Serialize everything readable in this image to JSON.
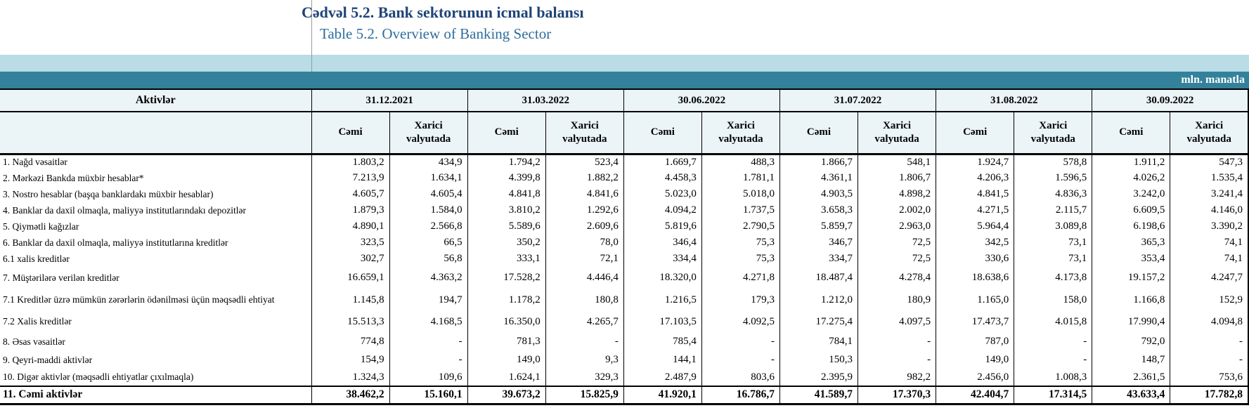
{
  "title": {
    "az": "Cədvəl 5.2. Bank sektorunun icmal balansı",
    "en": "Table 5.2. Overview of Banking Sector"
  },
  "unit_label": "mln. manatla",
  "table": {
    "row_header": "Aktivlər",
    "dates": [
      "31.12.2021",
      "31.03.2022",
      "30.06.2022",
      "31.07.2022",
      "31.08.2022",
      "30.09.2022"
    ],
    "subcolumns": [
      "Cəmi",
      "Xarici valyutada"
    ],
    "rows": [
      {
        "label": "1. Nağd vəsaitlər",
        "values": [
          "1.803,2",
          "434,9",
          "1.794,2",
          "523,4",
          "1.669,7",
          "488,3",
          "1.866,7",
          "548,1",
          "1.924,7",
          "578,8",
          "1.911,2",
          "547,3"
        ]
      },
      {
        "label": "2. Mərkəzi Bankda müxbir hesablar*",
        "values": [
          "7.213,9",
          "1.634,1",
          "4.399,8",
          "1.882,2",
          "4.458,3",
          "1.781,1",
          "4.361,1",
          "1.806,7",
          "4.206,3",
          "1.596,5",
          "4.026,2",
          "1.535,4"
        ]
      },
      {
        "label": "3. Nostro hesablar (başqa banklardakı müxbir hesablar)",
        "values": [
          "4.605,7",
          "4.605,4",
          "4.841,8",
          "4.841,6",
          "5.023,0",
          "5.018,0",
          "4.903,5",
          "4.898,2",
          "4.841,5",
          "4.836,3",
          "3.242,0",
          "3.241,4"
        ]
      },
      {
        "label": "4. Banklar da daxil olmaqla, maliyyə institutlarındakı depozitlər",
        "values": [
          "1.879,3",
          "1.584,0",
          "3.810,2",
          "1.292,6",
          "4.094,2",
          "1.737,5",
          "3.658,3",
          "2.002,0",
          "4.271,5",
          "2.115,7",
          "6.609,5",
          "4.146,0"
        ]
      },
      {
        "label": "5. Qiymətli kağızlar",
        "values": [
          "4.890,1",
          "2.566,8",
          "5.589,6",
          "2.609,6",
          "5.819,6",
          "2.790,5",
          "5.859,7",
          "2.963,0",
          "5.964,4",
          "3.089,8",
          "6.198,6",
          "3.390,2"
        ]
      },
      {
        "label": "6. Banklar da daxil olmaqla, maliyyə institutlarına kreditlər",
        "values": [
          "323,5",
          "66,5",
          "350,2",
          "78,0",
          "346,4",
          "75,3",
          "346,7",
          "72,5",
          "342,5",
          "73,1",
          "365,3",
          "74,1"
        ]
      },
      {
        "label": "6.1 xalis kreditlər",
        "values": [
          "302,7",
          "56,8",
          "333,1",
          "72,1",
          "334,4",
          "75,3",
          "334,7",
          "72,5",
          "330,6",
          "73,1",
          "353,4",
          "74,1"
        ]
      },
      {
        "label": "7. Müştərilərə verilən kreditlər",
        "values": [
          "16.659,1",
          "4.363,2",
          "17.528,2",
          "4.446,4",
          "18.320,0",
          "4.271,8",
          "18.487,4",
          "4.278,4",
          "18.638,6",
          "4.173,8",
          "19.157,2",
          "4.247,7"
        ]
      },
      {
        "label": "7.1 Kreditlər üzrə mümkün zərərlərin ödənilməsi üçün məqsədli ehtiyat",
        "values": [
          "1.145,8",
          "194,7",
          "1.178,2",
          "180,8",
          "1.216,5",
          "179,3",
          "1.212,0",
          "180,9",
          "1.165,0",
          "158,0",
          "1.166,8",
          "152,9"
        ]
      },
      {
        "label": "7.2 Xalis kreditlər",
        "values": [
          "15.513,3",
          "4.168,5",
          "16.350,0",
          "4.265,7",
          "17.103,5",
          "4.092,5",
          "17.275,4",
          "4.097,5",
          "17.473,7",
          "4.015,8",
          "17.990,4",
          "4.094,8"
        ]
      },
      {
        "label": "8.  Əsas vəsaitlər",
        "values": [
          "774,8",
          "-",
          "781,3",
          "-",
          "785,4",
          "-",
          "784,1",
          "-",
          "787,0",
          "-",
          "792,0",
          "-"
        ]
      },
      {
        "label": "9. Qeyri-maddi aktivlər",
        "values": [
          "154,9",
          "-",
          "149,0",
          "9,3",
          "144,1",
          "-",
          "150,3",
          "-",
          "149,0",
          "-",
          "148,7",
          "-"
        ]
      },
      {
        "label": "10. Digər aktivlər (məqsədli ehtiyatlar çıxılmaqla)",
        "values": [
          "1.324,3",
          "109,6",
          "1.624,1",
          "329,3",
          "2.487,9",
          "803,6",
          "2.395,9",
          "982,2",
          "2.456,0",
          "1.008,3",
          "2.361,5",
          "753,6"
        ]
      }
    ],
    "total_row": {
      "label": "11. Cəmi aktivlər",
      "values": [
        "38.462,2",
        "15.160,1",
        "39.673,2",
        "15.825,9",
        "41.920,1",
        "16.786,7",
        "41.589,7",
        "17.370,3",
        "42.404,7",
        "17.314,5",
        "43.633,4",
        "17.782,8"
      ]
    }
  },
  "colors": {
    "band_light": "#b9dce7",
    "band_teal": "#33819a",
    "header_bg": "#ebf4f6",
    "title_az": "#1f4478",
    "title_en": "#2e6e9e",
    "border": "#000000"
  }
}
